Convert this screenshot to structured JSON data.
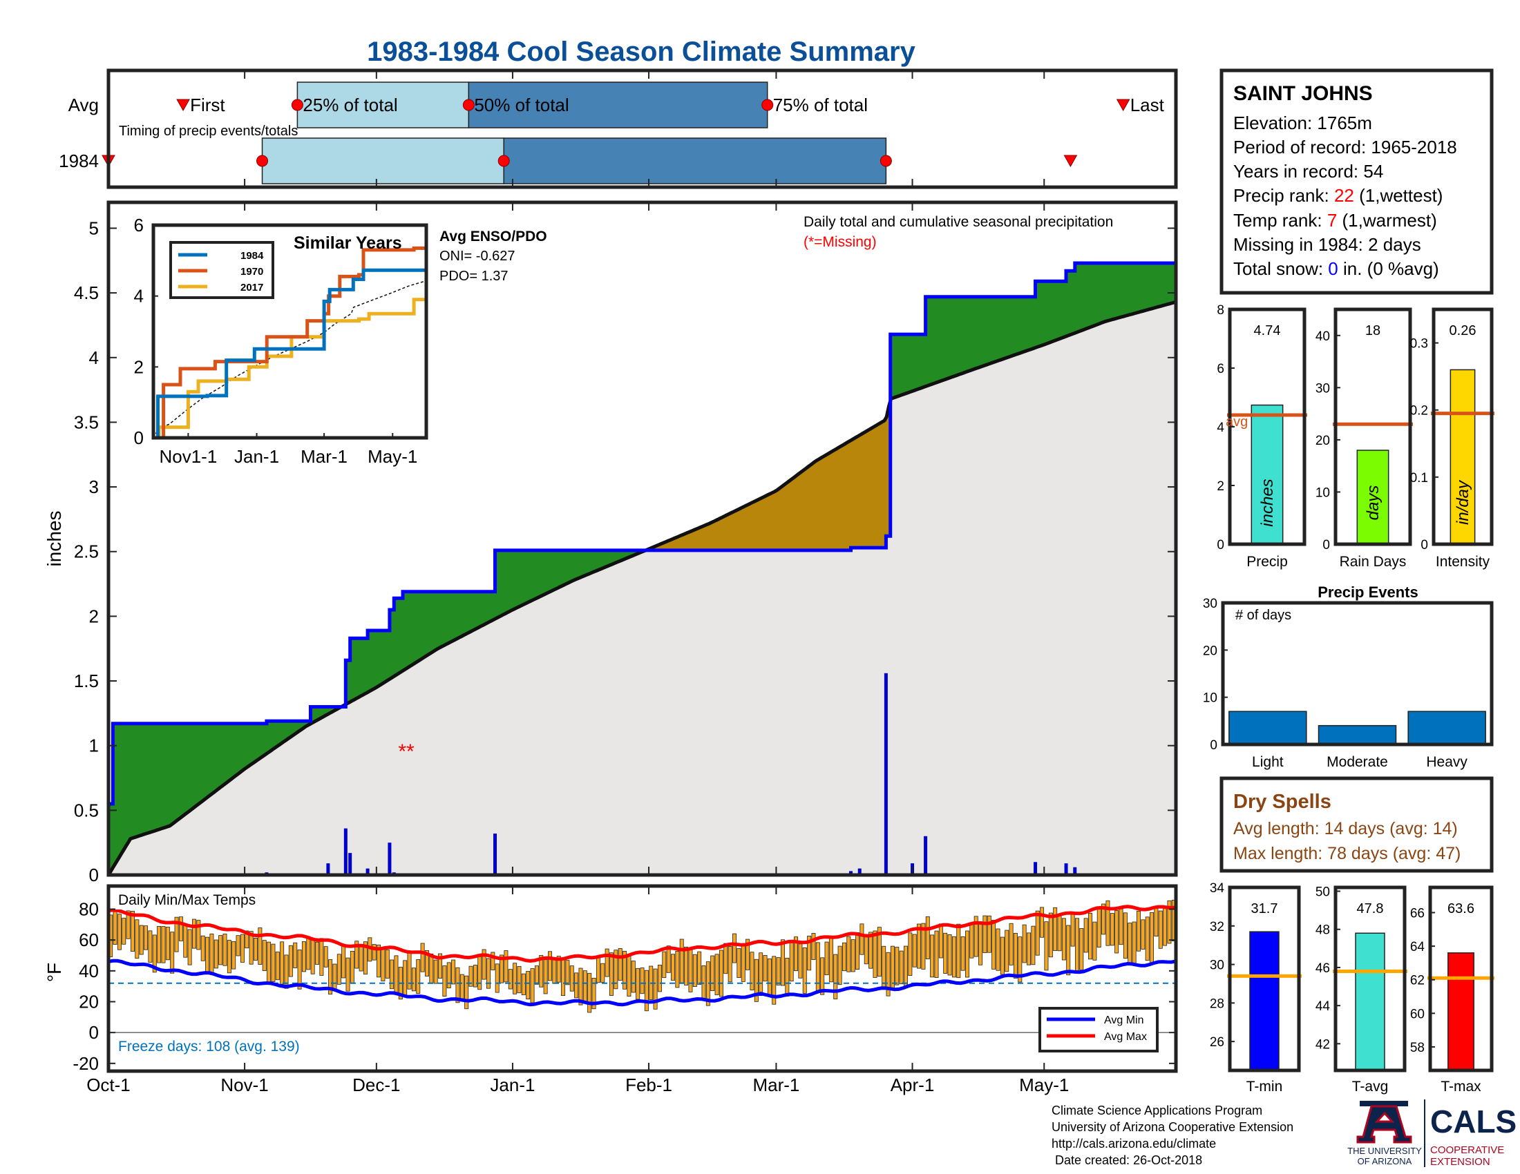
{
  "title": "1983-1984 Cool Season Climate Summary",
  "colors": {
    "title": "#0b4f99",
    "ltblue": "#add8e6",
    "midblue": "#4682b4",
    "green": "#228b22",
    "brown": "#b8860b",
    "gray": "#e8e7e6",
    "navy": "#0000ff",
    "red": "#ff0000",
    "orange": "#f5a623",
    "avgline": "#d95319"
  },
  "timing": {
    "rows": [
      "Avg",
      "1984"
    ],
    "labels": [
      "First",
      "25% of total",
      "50% of total",
      "75% of total",
      "Last"
    ],
    "caption": "Timing of precip events/totals",
    "avg_dates": [
      "1983-10-18",
      "1983-11-13",
      "1983-12-22",
      "1984-02-28",
      "1984-05-19"
    ],
    "y1984_dates": [
      "1983-10-01",
      "1983-11-05",
      "1983-12-30",
      "1984-03-26",
      "1984-05-07"
    ]
  },
  "station": {
    "name": "SAINT JOHNS",
    "elevation": "Elevation: 1765m",
    "period": "Period of record: 1965-2018",
    "years": "Years in record: 54",
    "precip_rank_label": "Precip rank: ",
    "precip_rank_value": "22",
    "precip_rank_suffix": " (1,wettest)",
    "temp_rank_label": "Temp rank: ",
    "temp_rank_value": "7",
    "temp_rank_suffix": " (1,warmest)",
    "missing": "Missing in 1984: 2 days",
    "snow_label": "Total snow: ",
    "snow_value": "0",
    "snow_suffix": " in. (0 %avg)"
  },
  "main": {
    "ylabel": "inches",
    "note_line1": "Daily total and cumulative seasonal precipitation",
    "note_line2": "(*=Missing)",
    "missing_marker": "**",
    "enso_title": "Avg ENSO/PDO",
    "oni": "ONI= -0.627",
    "pdo": "PDO= 1.37",
    "yticks": [
      "0",
      "0.5",
      "1",
      "1.5",
      "2",
      "2.5",
      "3",
      "3.5",
      "4",
      "4.5",
      "5"
    ]
  },
  "months": [
    "Oct-1",
    "Nov-1",
    "Dec-1",
    "Jan-1",
    "Feb-1",
    "Mar-1",
    "Apr-1",
    "May-1"
  ],
  "similar": {
    "title": "Similar Years",
    "legend": [
      "1984",
      "1970",
      "2017"
    ],
    "colors": [
      "#0072bd",
      "#d95319",
      "#edb120"
    ],
    "xticks": [
      "Nov1-1",
      "Jan-1",
      "Mar-1",
      "May-1"
    ],
    "yticks": [
      "0",
      "2",
      "4",
      "6"
    ]
  },
  "temps": {
    "title": "Daily Min/Max Temps",
    "ylabel": "°F",
    "yticks": [
      "-20",
      "0",
      "20",
      "40",
      "60",
      "80"
    ],
    "freeze": "Freeze days: 108 (avg. 139)",
    "legend_min": "Avg Min",
    "legend_max": "Avg Max"
  },
  "summary_bars": {
    "precip": {
      "label": "Precip",
      "value": "4.74",
      "unit": "inches",
      "avg": 4.4,
      "avg_label": "avg"
    },
    "raindays": {
      "label": "Rain Days",
      "value": "18",
      "unit": "days",
      "avg": 23
    },
    "intensity": {
      "label": "Intensity",
      "value": "0.26",
      "unit": "in/day",
      "avg": 0.195
    }
  },
  "events": {
    "title": "Precip Events",
    "ylabel": "# of days",
    "yticks": [
      "0",
      "10",
      "20",
      "30"
    ]
  },
  "dry": {
    "title": "Dry Spells",
    "avg": "Avg length: 14 days (avg: 14)",
    "max": "Max length: 78 days (avg: 47)"
  },
  "temp_bars": {
    "tmin": {
      "label": "T-min",
      "value": "31.7",
      "avg": 29.4
    },
    "tavg": {
      "label": "T-avg",
      "value": "47.8",
      "avg": 45.8
    },
    "tmax": {
      "label": "T-max",
      "value": "63.6",
      "avg": 62.1
    }
  },
  "footer": {
    "line1": "Climate Science Applications Program",
    "line2": "University of Arizona Cooperative Extension",
    "line3": "http://cals.arizona.edu/climate",
    "line4": " Date created: 26-Oct-2018",
    "ua1": "THE UNIVERSITY",
    "ua2": "OF ARIZONA",
    "cals": "CALS",
    "coop1": "COOPERATIVE",
    "coop2": "EXTENSION"
  },
  "chart_data": [
    {
      "type": "line",
      "title": "Daily total and cumulative seasonal precipitation",
      "ylabel": "inches",
      "ylim": [
        0,
        5.2
      ],
      "x_range": [
        "1983-10-01",
        "1984-05-31"
      ],
      "series": [
        {
          "name": "1984",
          "x": [
            "1983-10-01",
            "1983-10-02",
            "1983-11-06",
            "1983-11-16",
            "1983-11-24",
            "1983-11-25",
            "1983-11-29",
            "1983-12-04",
            "1983-12-05",
            "1983-12-07",
            "1983-12-28",
            "1984-02-25",
            "1984-03-18",
            "1984-03-20",
            "1984-03-26",
            "1984-03-27",
            "1984-04-04",
            "1984-04-29",
            "1984-05-06",
            "1984-05-08",
            "1984-05-31"
          ],
          "y": [
            0.55,
            1.17,
            1.19,
            1.3,
            1.66,
            1.83,
            1.89,
            2.05,
            2.14,
            2.19,
            2.51,
            2.51,
            2.53,
            2.53,
            2.62,
            4.18,
            4.47,
            4.59,
            4.67,
            4.73,
            4.73
          ]
        },
        {
          "name": "Avg",
          "x": [
            "1983-10-01",
            "1983-10-06",
            "1983-10-15",
            "1983-11-01",
            "1983-11-15",
            "1983-12-01",
            "1983-12-15",
            "1984-01-01",
            "1984-01-15",
            "1984-02-01",
            "1984-02-15",
            "1984-03-01",
            "1984-03-10",
            "1984-03-26",
            "1984-03-27",
            "1984-04-15",
            "1984-05-01",
            "1984-05-15",
            "1984-05-31"
          ],
          "y": [
            0.0,
            0.28,
            0.38,
            0.82,
            1.15,
            1.45,
            1.75,
            2.05,
            2.28,
            2.52,
            2.72,
            2.97,
            3.2,
            3.52,
            3.68,
            3.91,
            4.1,
            4.28,
            4.43
          ]
        }
      ],
      "daily_precip": {
        "x": [
          "1983-10-01",
          "1983-11-06",
          "1983-11-20",
          "1983-11-24",
          "1983-11-25",
          "1983-11-29",
          "1983-12-04",
          "1983-12-05",
          "1983-12-07",
          "1983-12-28",
          "1984-03-18",
          "1984-03-20",
          "1984-03-26",
          "1984-04-01",
          "1984-04-04",
          "1984-04-29",
          "1984-05-06",
          "1984-05-08"
        ],
        "y": [
          0.55,
          0.02,
          0.09,
          0.36,
          0.17,
          0.05,
          0.25,
          0.02,
          0.01,
          0.32,
          0.03,
          0.05,
          1.56,
          0.09,
          0.3,
          0.1,
          0.09,
          0.06
        ]
      },
      "missing_dates": [
        "1983-12-05",
        "1983-12-07"
      ]
    },
    {
      "type": "line",
      "title": "Similar Years",
      "ylim": [
        0,
        6
      ],
      "x_range": [
        "1983-10-01",
        "1984-05-31"
      ],
      "series": [
        {
          "name": "1984",
          "x": [
            "1983-10-01",
            "1983-10-05",
            "1983-11-18",
            "1983-12-05",
            "1983-12-30",
            "1984-02-25",
            "1984-03-01",
            "1984-03-06",
            "1984-03-27",
            "1984-04-05",
            "1984-05-31"
          ],
          "y": [
            0.0,
            1.17,
            1.19,
            2.19,
            2.51,
            2.51,
            3.85,
            4.18,
            4.47,
            4.73,
            4.73
          ]
        },
        {
          "name": "1970",
          "x": [
            "1983-10-01",
            "1983-10-10",
            "1983-10-25",
            "1983-11-05",
            "1983-11-25",
            "1983-12-20",
            "1984-01-10",
            "1984-01-31",
            "1984-02-15",
            "1984-03-01",
            "1984-03-05",
            "1984-03-15",
            "1984-04-01",
            "1984-04-05",
            "1984-05-20",
            "1984-05-31"
          ],
          "y": [
            0.0,
            1.5,
            1.95,
            1.95,
            2.15,
            2.15,
            2.85,
            2.85,
            3.3,
            3.5,
            4.0,
            4.55,
            4.6,
            5.3,
            5.35,
            5.9
          ]
        },
        {
          "name": "2017",
          "x": [
            "1983-10-01",
            "1983-10-06",
            "1983-10-20",
            "1983-11-01",
            "1983-11-10",
            "1983-12-05",
            "1983-12-25",
            "1984-01-10",
            "1984-02-01",
            "1984-02-25",
            "1984-03-01",
            "1984-03-10",
            "1984-04-01",
            "1984-04-10",
            "1984-05-01",
            "1984-05-20",
            "1984-05-31"
          ],
          "y": [
            0.0,
            0.3,
            0.3,
            1.3,
            1.6,
            1.65,
            2.0,
            2.3,
            2.85,
            2.85,
            3.3,
            3.3,
            3.35,
            3.5,
            3.5,
            3.9,
            4.2
          ]
        }
      ]
    },
    {
      "type": "line",
      "title": "Daily Min/Max Temps",
      "ylabel": "°F",
      "ylim": [
        -25,
        95
      ],
      "x_range": [
        "1983-10-01",
        "1984-05-31"
      ],
      "series": [
        {
          "name": "Avg Min",
          "x": [
            "1983-10-01",
            "1983-10-15",
            "1983-11-01",
            "1983-11-15",
            "1983-12-01",
            "1983-12-15",
            "1984-01-01",
            "1984-01-15",
            "1984-02-01",
            "1984-02-15",
            "1984-03-01",
            "1984-03-15",
            "1984-04-01",
            "1984-04-15",
            "1984-05-01",
            "1984-05-15",
            "1984-05-31"
          ],
          "y": [
            46,
            41,
            34,
            29,
            25,
            22,
            20,
            19,
            20,
            22,
            24,
            27,
            30,
            34,
            38,
            42,
            47
          ]
        },
        {
          "name": "Avg Max",
          "x": [
            "1983-10-01",
            "1983-10-15",
            "1983-11-01",
            "1983-11-15",
            "1983-12-01",
            "1983-12-15",
            "1984-01-01",
            "1984-01-15",
            "1984-02-01",
            "1984-02-15",
            "1984-03-01",
            "1984-03-15",
            "1984-04-01",
            "1984-04-15",
            "1984-05-01",
            "1984-05-15",
            "1984-05-31"
          ],
          "y": [
            79,
            72,
            65,
            61,
            55,
            50,
            48,
            48,
            52,
            56,
            58,
            62,
            66,
            71,
            76,
            80,
            82
          ]
        }
      ],
      "freeze_line": 32,
      "daily_range": "daily min/max bars around the averages, highs up to ~92 °F, lows down to ~5 °F"
    },
    {
      "type": "bar",
      "title": "Precip",
      "categories": [
        "Precip"
      ],
      "values": [
        4.74
      ],
      "avg": 4.4,
      "ylim": [
        0,
        8
      ],
      "yticks": [
        "0",
        "2",
        "4",
        "6",
        "8"
      ],
      "unit": "inches"
    },
    {
      "type": "bar",
      "title": "Rain Days",
      "categories": [
        "Rain Days"
      ],
      "values": [
        18
      ],
      "avg": 23,
      "ylim": [
        0,
        45
      ],
      "yticks": [
        "0",
        "10",
        "20",
        "30",
        "40"
      ],
      "unit": "days"
    },
    {
      "type": "bar",
      "title": "Intensity",
      "categories": [
        "Intensity"
      ],
      "values": [
        0.26
      ],
      "avg": 0.195,
      "ylim": [
        0,
        0.35
      ],
      "yticks": [
        "0",
        "0.1",
        "0.2",
        "0.3"
      ],
      "unit": "in/day"
    },
    {
      "type": "bar",
      "title": "Precip Events",
      "ylabel": "# of days",
      "categories": [
        "Light",
        "Moderate",
        "Heavy"
      ],
      "values": [
        7,
        4,
        7
      ],
      "ylim": [
        0,
        30
      ]
    },
    {
      "type": "bar",
      "title": "T-min",
      "categories": [
        "T-min"
      ],
      "values": [
        31.7
      ],
      "avg": 29.4,
      "ylim": [
        24.5,
        34
      ],
      "yticks": [
        "26",
        "28",
        "30",
        "32",
        "34"
      ]
    },
    {
      "type": "bar",
      "title": "T-avg",
      "categories": [
        "T-avg"
      ],
      "values": [
        47.8
      ],
      "avg": 45.8,
      "ylim": [
        40.6,
        50.2
      ],
      "yticks": [
        "42",
        "44",
        "46",
        "48",
        "50"
      ]
    },
    {
      "type": "bar",
      "title": "T-max",
      "categories": [
        "T-max"
      ],
      "values": [
        63.6
      ],
      "avg": 62.1,
      "ylim": [
        56.6,
        67.5
      ],
      "yticks": [
        "58",
        "60",
        "62",
        "64",
        "66"
      ]
    }
  ]
}
